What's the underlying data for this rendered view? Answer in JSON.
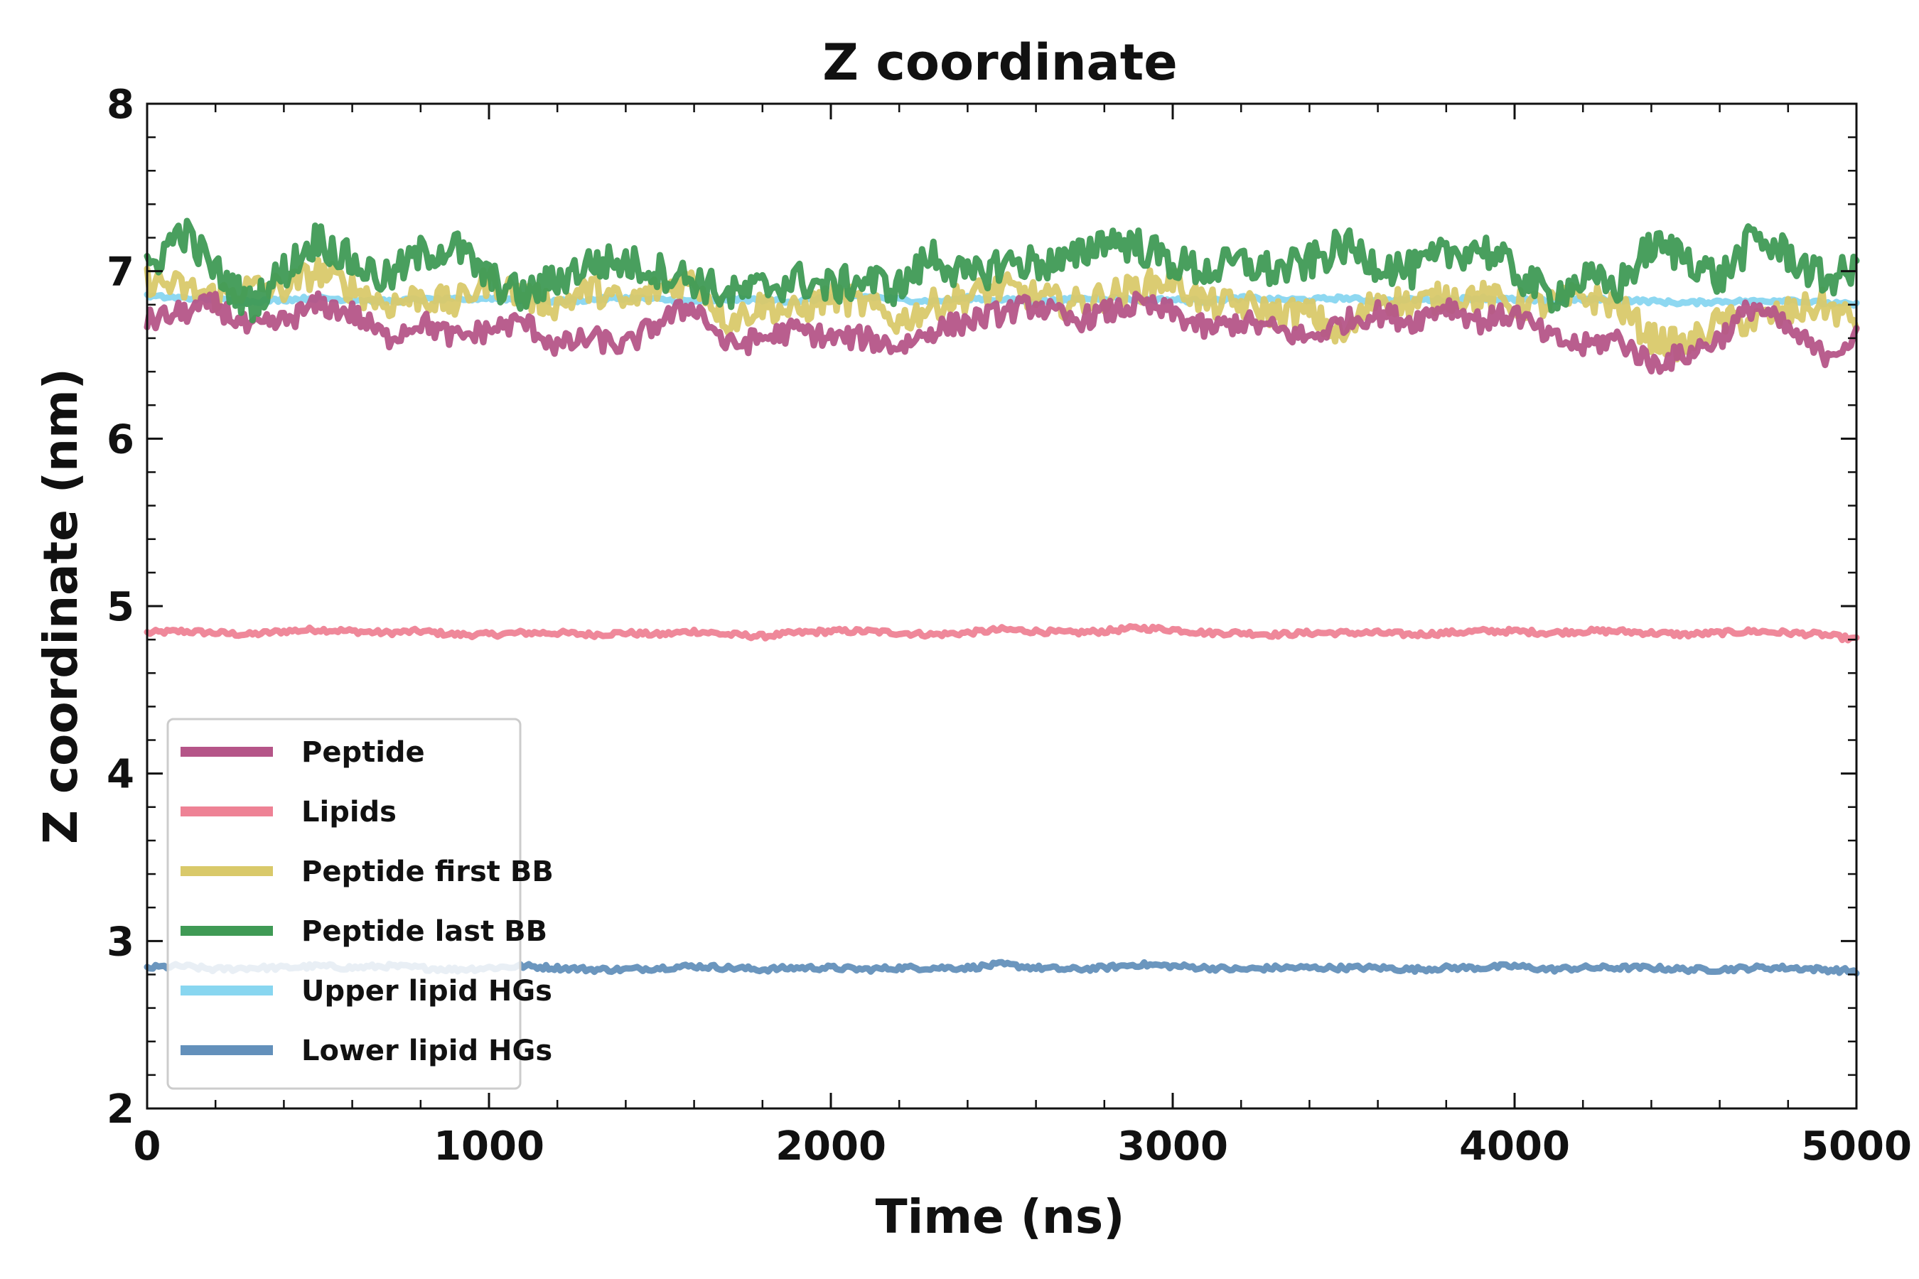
{
  "chart_data": {
    "type": "line",
    "title": "Z coordinate",
    "xlabel": "Time (ns)",
    "ylabel": "Z coordinate (nm)",
    "xlim": [
      0,
      5000
    ],
    "ylim": [
      2,
      8
    ],
    "x_ticks": [
      "0",
      "1000",
      "2000",
      "3000",
      "4000",
      "5000"
    ],
    "y_ticks": [
      "2",
      "3",
      "4",
      "5",
      "6",
      "7",
      "8"
    ],
    "grid": false,
    "legend_position": "lower-left",
    "x": [
      0,
      100,
      200,
      300,
      400,
      500,
      600,
      700,
      800,
      900,
      1000,
      1100,
      1200,
      1300,
      1400,
      1500,
      1600,
      1700,
      1800,
      1900,
      2000,
      2100,
      2200,
      2300,
      2400,
      2500,
      2600,
      2700,
      2800,
      2900,
      3000,
      3100,
      3200,
      3300,
      3400,
      3500,
      3600,
      3700,
      3800,
      3900,
      4000,
      4100,
      4200,
      4300,
      4400,
      4500,
      4600,
      4700,
      4800,
      4900,
      5000
    ],
    "series": [
      {
        "name": "Peptide",
        "color": "#b55588",
        "values": [
          6.7,
          6.75,
          6.8,
          6.65,
          6.7,
          6.8,
          6.75,
          6.6,
          6.7,
          6.6,
          6.65,
          6.7,
          6.55,
          6.6,
          6.55,
          6.7,
          6.8,
          6.55,
          6.6,
          6.65,
          6.6,
          6.6,
          6.55,
          6.65,
          6.7,
          6.75,
          6.8,
          6.7,
          6.75,
          6.8,
          6.75,
          6.65,
          6.7,
          6.65,
          6.6,
          6.7,
          6.75,
          6.7,
          6.8,
          6.7,
          6.75,
          6.6,
          6.55,
          6.6,
          6.45,
          6.5,
          6.6,
          6.8,
          6.65,
          6.5,
          6.6
        ]
      },
      {
        "name": "Lipids",
        "color": "#ee8295",
        "values": [
          4.84,
          4.85,
          4.84,
          4.83,
          4.85,
          4.86,
          4.85,
          4.84,
          4.85,
          4.83,
          4.83,
          4.84,
          4.84,
          4.83,
          4.84,
          4.83,
          4.85,
          4.83,
          4.82,
          4.84,
          4.85,
          4.85,
          4.84,
          4.83,
          4.84,
          4.86,
          4.85,
          4.84,
          4.85,
          4.87,
          4.86,
          4.84,
          4.84,
          4.83,
          4.84,
          4.84,
          4.84,
          4.83,
          4.84,
          4.85,
          4.85,
          4.84,
          4.85,
          4.85,
          4.84,
          4.83,
          4.84,
          4.85,
          4.84,
          4.83,
          4.8
        ]
      },
      {
        "name": "Peptide first BB",
        "color": "#d9c96a",
        "values": [
          6.95,
          6.9,
          6.85,
          6.9,
          6.9,
          7.0,
          6.9,
          6.8,
          6.85,
          6.8,
          6.95,
          6.85,
          6.8,
          6.9,
          6.8,
          6.9,
          6.95,
          6.7,
          6.8,
          6.75,
          6.85,
          6.8,
          6.7,
          6.8,
          6.85,
          6.9,
          6.85,
          6.8,
          6.85,
          6.9,
          6.95,
          6.8,
          6.8,
          6.75,
          6.75,
          6.6,
          6.85,
          6.8,
          6.85,
          6.85,
          6.8,
          6.8,
          6.85,
          6.8,
          6.6,
          6.55,
          6.7,
          6.7,
          6.75,
          6.8,
          6.7
        ]
      },
      {
        "name": "Peptide last BB",
        "color": "#3f9a55",
        "values": [
          7.0,
          7.25,
          7.0,
          6.8,
          7.0,
          7.2,
          7.05,
          6.95,
          7.1,
          7.15,
          6.95,
          6.85,
          6.95,
          7.05,
          7.05,
          7.0,
          6.95,
          6.85,
          6.9,
          6.95,
          6.9,
          6.95,
          6.9,
          7.1,
          6.95,
          7.05,
          7.05,
          7.05,
          7.2,
          7.15,
          7.05,
          7.0,
          7.05,
          7.0,
          7.05,
          7.15,
          7.05,
          7.0,
          7.1,
          7.15,
          7.0,
          6.85,
          6.95,
          6.9,
          7.15,
          7.1,
          6.95,
          7.2,
          7.1,
          6.95,
          7.0
        ]
      },
      {
        "name": "Upper lipid HGs",
        "color": "#88d6f0",
        "values": [
          6.85,
          6.84,
          6.83,
          6.82,
          6.83,
          6.84,
          6.83,
          6.82,
          6.83,
          6.83,
          6.84,
          6.83,
          6.82,
          6.83,
          6.84,
          6.83,
          6.82,
          6.83,
          6.83,
          6.82,
          6.84,
          6.85,
          6.83,
          6.82,
          6.84,
          6.83,
          6.82,
          6.83,
          6.84,
          6.83,
          6.83,
          6.82,
          6.84,
          6.83,
          6.83,
          6.84,
          6.82,
          6.83,
          6.83,
          6.84,
          6.83,
          6.82,
          6.83,
          6.83,
          6.82,
          6.81,
          6.82,
          6.82,
          6.83,
          6.81,
          6.8
        ]
      },
      {
        "name": "Lower lipid HGs",
        "color": "#6390bb",
        "values": [
          2.84,
          2.85,
          2.83,
          2.84,
          2.84,
          2.85,
          2.84,
          2.85,
          2.84,
          2.83,
          2.84,
          2.85,
          2.84,
          2.83,
          2.83,
          2.84,
          2.85,
          2.84,
          2.83,
          2.84,
          2.84,
          2.83,
          2.84,
          2.84,
          2.84,
          2.86,
          2.84,
          2.83,
          2.84,
          2.86,
          2.85,
          2.84,
          2.83,
          2.84,
          2.84,
          2.84,
          2.84,
          2.83,
          2.84,
          2.84,
          2.85,
          2.83,
          2.84,
          2.84,
          2.84,
          2.83,
          2.83,
          2.84,
          2.84,
          2.83,
          2.82
        ]
      }
    ]
  }
}
